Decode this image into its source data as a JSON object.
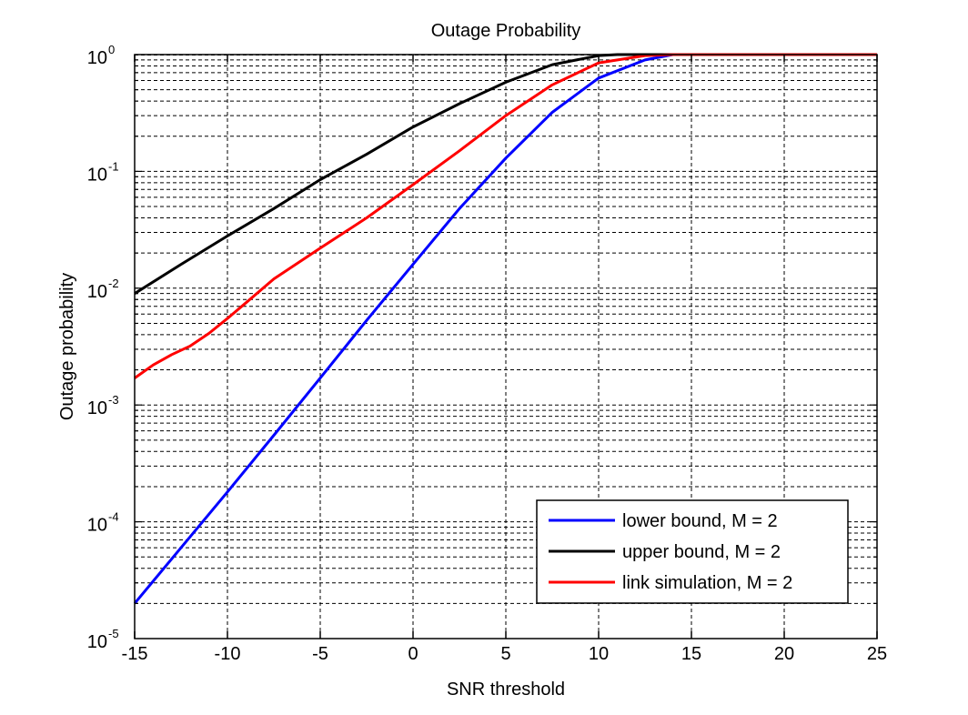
{
  "chart_data": {
    "type": "line",
    "title": "Outage Probability",
    "xlabel": "SNR threshold",
    "ylabel": "Outage probability",
    "xlim": [
      -15,
      25
    ],
    "ylim": [
      1e-05,
      1
    ],
    "yscale": "log",
    "grid": true,
    "legend_position": "bottom-right",
    "x_ticks": [
      -15,
      -10,
      -5,
      0,
      5,
      10,
      15,
      20,
      25
    ],
    "x_tick_labels": [
      "-15",
      "-10",
      "-5",
      "0",
      "5",
      "10",
      "15",
      "20",
      "25"
    ],
    "y_ticks": [
      {
        "value": 1e-05,
        "base": "10",
        "exp": "-5"
      },
      {
        "value": 0.0001,
        "base": "10",
        "exp": "-4"
      },
      {
        "value": 0.001,
        "base": "10",
        "exp": "-3"
      },
      {
        "value": 0.01,
        "base": "10",
        "exp": "-2"
      },
      {
        "value": 0.1,
        "base": "10",
        "exp": "-1"
      },
      {
        "value": 1,
        "base": "10",
        "exp": "0"
      }
    ],
    "series": [
      {
        "name": "lower bound, M = 2",
        "color": "#0000ff",
        "x": [
          -15,
          -12.5,
          -10,
          -7.5,
          -5,
          -2.5,
          0,
          2.5,
          5,
          7.5,
          10,
          12.5,
          14,
          25
        ],
        "y": [
          2e-05,
          6e-05,
          0.00018,
          0.00055,
          0.0017,
          0.0053,
          0.016,
          0.048,
          0.13,
          0.32,
          0.63,
          0.9,
          1,
          1
        ]
      },
      {
        "name": "upper bound, M = 2",
        "color": "#000000",
        "x": [
          -15,
          -12.5,
          -10,
          -7.5,
          -5,
          -2.5,
          0,
          2.5,
          5,
          7.5,
          10,
          11,
          25
        ],
        "y": [
          0.009,
          0.016,
          0.028,
          0.048,
          0.085,
          0.14,
          0.24,
          0.38,
          0.58,
          0.82,
          0.98,
          1,
          1
        ]
      },
      {
        "name": "link simulation, M = 2",
        "color": "#ff0000",
        "x": [
          -15,
          -14,
          -13,
          -12,
          -11,
          -10,
          -9,
          -7.5,
          -5,
          -2.5,
          0,
          2.5,
          5,
          7.5,
          10,
          12.5,
          14,
          25
        ],
        "y": [
          0.0017,
          0.0022,
          0.0027,
          0.0032,
          0.0041,
          0.0055,
          0.0075,
          0.012,
          0.022,
          0.04,
          0.077,
          0.15,
          0.3,
          0.55,
          0.85,
          0.98,
          1,
          1
        ]
      }
    ]
  }
}
